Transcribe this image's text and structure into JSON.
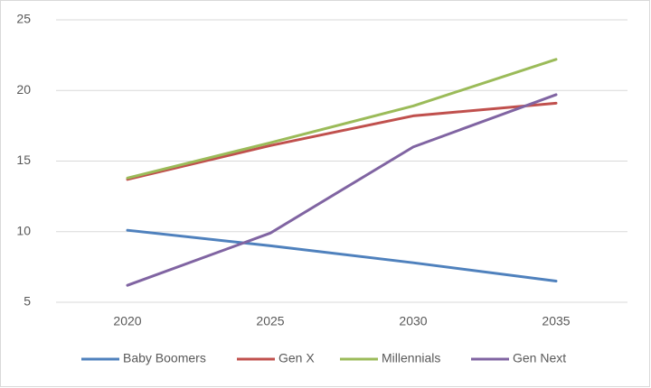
{
  "chart_data": {
    "type": "line",
    "categories": [
      "2020",
      "2025",
      "2030",
      "2035"
    ],
    "series": [
      {
        "name": "Baby Boomers",
        "color": "#4f81bd",
        "values": [
          10.1,
          9.0,
          7.8,
          6.5
        ]
      },
      {
        "name": "Gen X",
        "color": "#c0504d",
        "values": [
          13.7,
          16.1,
          18.2,
          19.1
        ]
      },
      {
        "name": "Millennials",
        "color": "#9bbb59",
        "values": [
          13.8,
          16.3,
          18.9,
          22.2
        ]
      },
      {
        "name": "Gen Next",
        "color": "#8064a2",
        "values": [
          6.2,
          9.9,
          16.0,
          19.7
        ]
      }
    ],
    "ylim": [
      5,
      25
    ],
    "yticks": [
      5,
      10,
      15,
      20,
      25
    ],
    "grid": true,
    "legend": "bottom"
  }
}
